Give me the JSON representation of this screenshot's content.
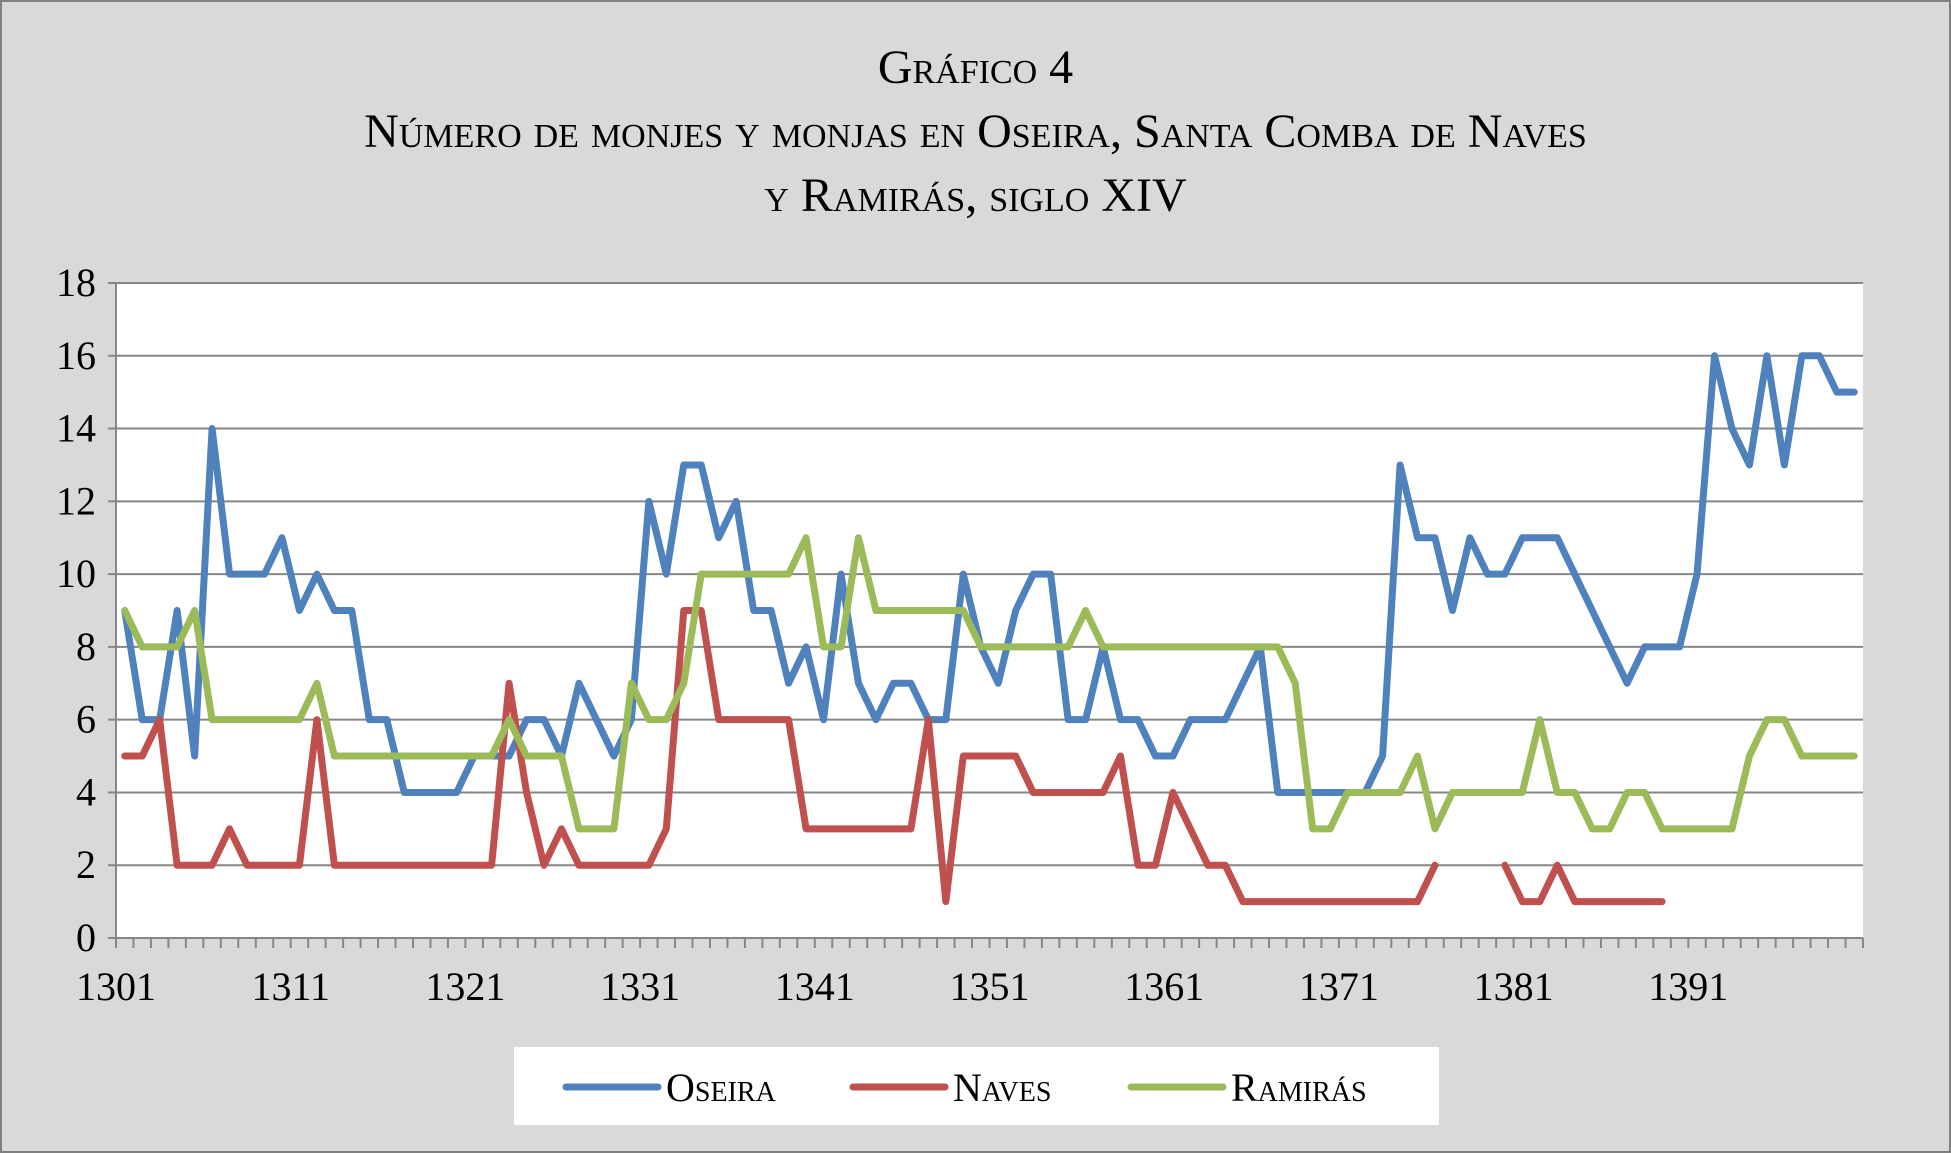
{
  "chart_data": {
    "type": "line",
    "title_lines": [
      "Gráfico 4",
      "Número de monjes y monjas en Oseira, Santa Comba de Naves",
      "y Ramirás, siglo XIV"
    ],
    "xlabel": "",
    "ylabel": "",
    "ylim": [
      0,
      18
    ],
    "yticks": [
      "0",
      "2",
      "4",
      "6",
      "8",
      "10",
      "12",
      "14",
      "16",
      "18"
    ],
    "x_tick_labels": [
      "1301",
      "1311",
      "1321",
      "1331",
      "1341",
      "1351",
      "1361",
      "1371",
      "1381",
      "1391"
    ],
    "grid": "horizontal",
    "legend_position": "bottom",
    "x": [
      1301,
      1302,
      1303,
      1304,
      1305,
      1306,
      1307,
      1308,
      1309,
      1310,
      1311,
      1312,
      1313,
      1314,
      1315,
      1316,
      1317,
      1318,
      1319,
      1320,
      1321,
      1322,
      1323,
      1324,
      1325,
      1326,
      1327,
      1328,
      1329,
      1330,
      1331,
      1332,
      1333,
      1334,
      1335,
      1336,
      1337,
      1338,
      1339,
      1340,
      1341,
      1342,
      1343,
      1344,
      1345,
      1346,
      1347,
      1348,
      1349,
      1350,
      1351,
      1352,
      1353,
      1354,
      1355,
      1356,
      1357,
      1358,
      1359,
      1360,
      1361,
      1362,
      1363,
      1364,
      1365,
      1366,
      1367,
      1368,
      1369,
      1370,
      1371,
      1372,
      1373,
      1374,
      1375,
      1376,
      1377,
      1378,
      1379,
      1380,
      1381,
      1382,
      1383,
      1384,
      1385,
      1386,
      1387,
      1388,
      1389,
      1390,
      1391,
      1392,
      1393,
      1394,
      1395,
      1396,
      1397,
      1398,
      1399,
      1400
    ],
    "series": [
      {
        "name": "Oseira",
        "color": "#4f81bd",
        "values": [
          9,
          6,
          6,
          9,
          5,
          14,
          10,
          10,
          10,
          11,
          9,
          10,
          9,
          9,
          6,
          6,
          4,
          4,
          4,
          4,
          5,
          5,
          5,
          6,
          6,
          5,
          7,
          6,
          5,
          6,
          12,
          10,
          13,
          13,
          11,
          12,
          9,
          9,
          7,
          8,
          6,
          10,
          7,
          6,
          7,
          7,
          6,
          6,
          10,
          8,
          7,
          9,
          10,
          10,
          6,
          6,
          8,
          6,
          6,
          5,
          5,
          6,
          6,
          6,
          7,
          8,
          4,
          4,
          4,
          4,
          4,
          4,
          5,
          13,
          11,
          11,
          9,
          11,
          10,
          10,
          11,
          11,
          11,
          10,
          9,
          8,
          7,
          8,
          8,
          8,
          10,
          16,
          14,
          13,
          16,
          13,
          16,
          16,
          15,
          15
        ]
      },
      {
        "name": "Naves",
        "color": "#c0504d",
        "values": [
          5,
          5,
          6,
          2,
          2,
          2,
          3,
          2,
          2,
          2,
          2,
          6,
          2,
          2,
          2,
          2,
          2,
          2,
          2,
          2,
          2,
          2,
          7,
          4,
          2,
          3,
          2,
          2,
          2,
          2,
          2,
          3,
          9,
          9,
          6,
          6,
          6,
          6,
          6,
          3,
          3,
          3,
          3,
          3,
          3,
          3,
          6,
          1,
          5,
          5,
          5,
          5,
          4,
          4,
          4,
          4,
          4,
          5,
          2,
          2,
          4,
          3,
          2,
          2,
          1,
          1,
          1,
          1,
          1,
          1,
          1,
          1,
          1,
          1,
          1,
          2,
          null,
          null,
          null,
          2,
          1,
          1,
          2,
          1,
          1,
          1,
          1,
          1,
          1,
          null,
          null,
          null,
          null,
          null,
          null,
          null,
          null,
          null,
          null,
          null
        ]
      },
      {
        "name": "Ramirás",
        "color": "#9bbb59",
        "values": [
          9,
          8,
          8,
          8,
          9,
          6,
          6,
          6,
          6,
          6,
          6,
          7,
          5,
          5,
          5,
          5,
          5,
          5,
          5,
          5,
          5,
          5,
          6,
          5,
          5,
          5,
          3,
          3,
          3,
          7,
          6,
          6,
          7,
          10,
          10,
          10,
          10,
          10,
          10,
          11,
          8,
          8,
          11,
          9,
          9,
          9,
          9,
          9,
          9,
          8,
          8,
          8,
          8,
          8,
          8,
          9,
          8,
          8,
          8,
          8,
          8,
          8,
          8,
          8,
          8,
          8,
          8,
          7,
          3,
          3,
          4,
          4,
          4,
          4,
          5,
          3,
          4,
          4,
          4,
          4,
          4,
          6,
          4,
          4,
          3,
          3,
          4,
          4,
          3,
          3,
          3,
          3,
          3,
          5,
          6,
          6,
          5,
          5,
          5,
          5
        ]
      }
    ]
  }
}
